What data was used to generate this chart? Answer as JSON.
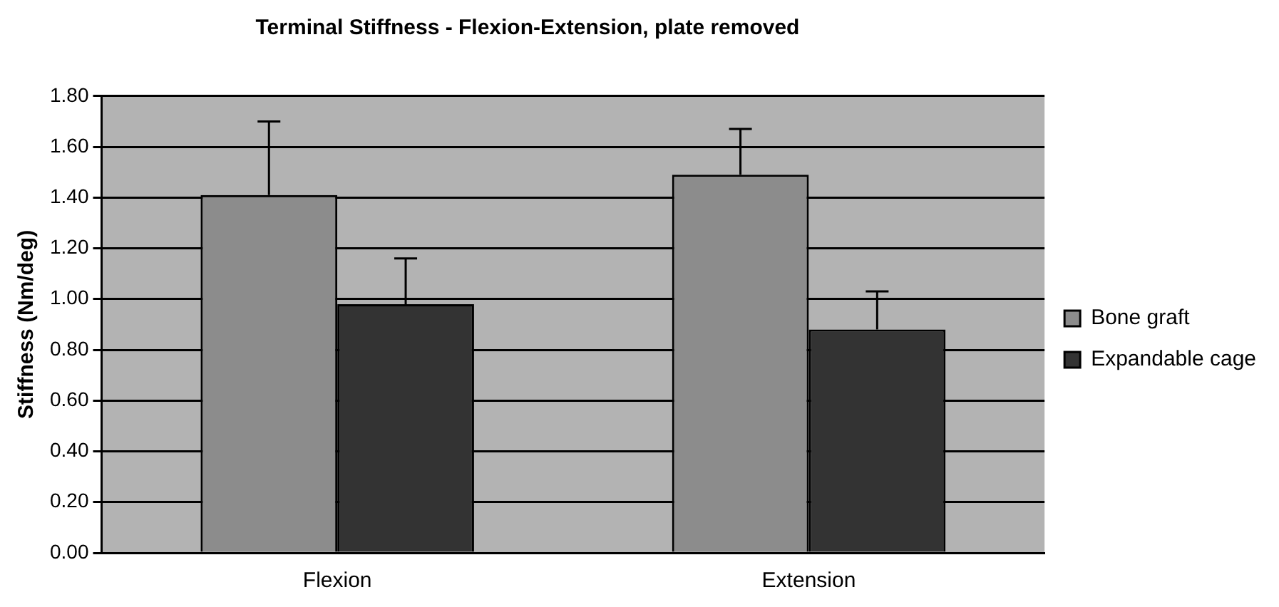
{
  "chart_data": {
    "type": "bar",
    "title": "Terminal Stiffness - Flexion-Extension, plate removed",
    "ylabel": "Stiffness (Nm/deg)",
    "categories": [
      "Flexion",
      "Extension"
    ],
    "series": [
      {
        "name": "Bone graft",
        "color": "#8c8c8c",
        "values": [
          1.41,
          1.49
        ],
        "errors": [
          [
            1.41,
            1.7
          ],
          [
            1.49,
            1.67
          ]
        ]
      },
      {
        "name": "Expandable cage",
        "color": "#333333",
        "values": [
          0.98,
          0.88
        ],
        "errors": [
          [
            0.98,
            1.16
          ],
          [
            0.88,
            1.03
          ]
        ]
      }
    ],
    "ylim": [
      0,
      1.8
    ],
    "yticks": [
      {
        "value": 0,
        "label": "0.00"
      },
      {
        "value": 0.2,
        "label": "0.20"
      },
      {
        "value": 0.4,
        "label": "0.40"
      },
      {
        "value": 0.6,
        "label": "0.60"
      },
      {
        "value": 0.8,
        "label": "0.80"
      },
      {
        "value": 1,
        "label": "1.00"
      },
      {
        "value": 1.2,
        "label": "1.20"
      },
      {
        "value": 1.4,
        "label": "1.40"
      },
      {
        "value": 1.6,
        "label": "1.60"
      },
      {
        "value": 1.8,
        "label": "1.80"
      }
    ],
    "grid": "y",
    "legend": "right"
  }
}
